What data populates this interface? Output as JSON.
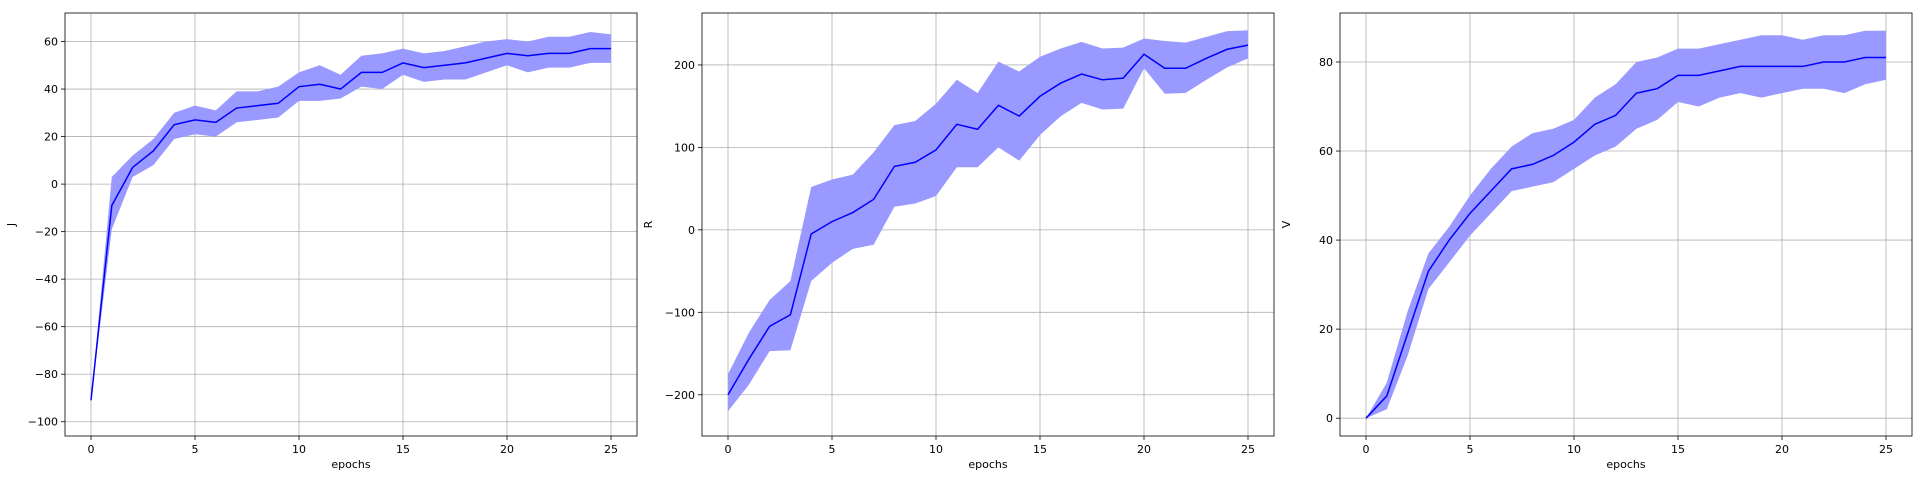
{
  "colors": {
    "band": "#9999ff",
    "line": "#0000ff"
  },
  "chart_data": [
    {
      "type": "line",
      "xlabel": "epochs",
      "ylabel": "J",
      "xlim": [
        -1.25,
        26.25
      ],
      "ylim": [
        -106,
        72
      ],
      "xticks": [
        0,
        5,
        10,
        15,
        20,
        25
      ],
      "yticks": [
        -100,
        -80,
        -60,
        -40,
        -20,
        0,
        20,
        40,
        60
      ],
      "grid": true,
      "x": [
        0,
        1,
        2,
        3,
        4,
        5,
        6,
        7,
        8,
        9,
        10,
        11,
        12,
        13,
        14,
        15,
        16,
        17,
        18,
        19,
        20,
        21,
        22,
        23,
        24,
        25
      ],
      "series": [
        {
          "mean": [
            -91,
            -9,
            7,
            14,
            25,
            27,
            26,
            32,
            33,
            34,
            41,
            42,
            40,
            47,
            47,
            51,
            49,
            50,
            51,
            53,
            55,
            54,
            55,
            55,
            57,
            57
          ],
          "upper": [
            -91,
            3,
            12,
            19,
            30,
            33,
            31,
            39,
            39,
            41,
            47,
            50,
            46,
            54,
            55,
            57,
            55,
            56,
            58,
            60,
            61,
            60,
            62,
            62,
            64,
            63
          ],
          "lower": [
            -91,
            -19,
            3,
            8,
            19,
            21,
            20,
            26,
            27,
            28,
            35,
            35,
            36,
            41,
            40,
            46,
            43,
            44,
            44,
            47,
            50,
            47,
            49,
            49,
            51,
            51
          ]
        }
      ]
    },
    {
      "type": "line",
      "xlabel": "epochs",
      "ylabel": "R",
      "xlim": [
        -1.25,
        26.25
      ],
      "ylim": [
        -250,
        263
      ],
      "xticks": [
        0,
        5,
        10,
        15,
        20,
        25
      ],
      "yticks": [
        -200,
        -100,
        0,
        100,
        200
      ],
      "grid": true,
      "x": [
        0,
        1,
        2,
        3,
        4,
        5,
        6,
        7,
        8,
        9,
        10,
        11,
        12,
        13,
        14,
        15,
        16,
        17,
        18,
        19,
        20,
        21,
        22,
        23,
        24,
        25
      ],
      "series": [
        {
          "mean": [
            -200,
            -157,
            -117,
            -103,
            -5,
            10,
            21,
            37,
            77,
            82,
            97,
            128,
            122,
            151,
            138,
            162,
            178,
            189,
            182,
            184,
            213,
            196,
            196,
            208,
            219,
            224
          ],
          "upper": [
            -175,
            -125,
            -85,
            -62,
            52,
            61,
            67,
            94,
            127,
            132,
            153,
            182,
            166,
            204,
            192,
            210,
            220,
            228,
            220,
            221,
            232,
            229,
            227,
            234,
            241,
            242
          ],
          "lower": [
            -220,
            -188,
            -147,
            -146,
            -62,
            -40,
            -23,
            -18,
            28,
            32,
            41,
            76,
            76,
            100,
            84,
            115,
            138,
            154,
            146,
            147,
            196,
            165,
            166,
            182,
            197,
            208
          ]
        }
      ]
    },
    {
      "type": "line",
      "xlabel": "epochs",
      "ylabel": "V",
      "xlim": [
        -1.25,
        26.25
      ],
      "ylim": [
        -4,
        91
      ],
      "xticks": [
        0,
        5,
        10,
        15,
        20,
        25
      ],
      "yticks": [
        0,
        20,
        40,
        60,
        80
      ],
      "grid": true,
      "x": [
        0,
        1,
        2,
        3,
        4,
        5,
        6,
        7,
        8,
        9,
        10,
        11,
        12,
        13,
        14,
        15,
        16,
        17,
        18,
        19,
        20,
        21,
        22,
        23,
        24,
        25
      ],
      "series": [
        {
          "mean": [
            0,
            5,
            19,
            33,
            40,
            46,
            51,
            56,
            57,
            59,
            62,
            66,
            68,
            73,
            74,
            77,
            77,
            78,
            79,
            79,
            79,
            79,
            80,
            80,
            81,
            81
          ],
          "upper": [
            0,
            8,
            24,
            37,
            43,
            50,
            56,
            61,
            64,
            65,
            67,
            72,
            75,
            80,
            81,
            83,
            83,
            84,
            85,
            86,
            86,
            85,
            86,
            86,
            87,
            87
          ],
          "lower": [
            0,
            2,
            14,
            29,
            35,
            41,
            46,
            51,
            52,
            53,
            56,
            59,
            61,
            65,
            67,
            71,
            70,
            72,
            73,
            72,
            73,
            74,
            74,
            73,
            75,
            76
          ]
        }
      ]
    }
  ]
}
